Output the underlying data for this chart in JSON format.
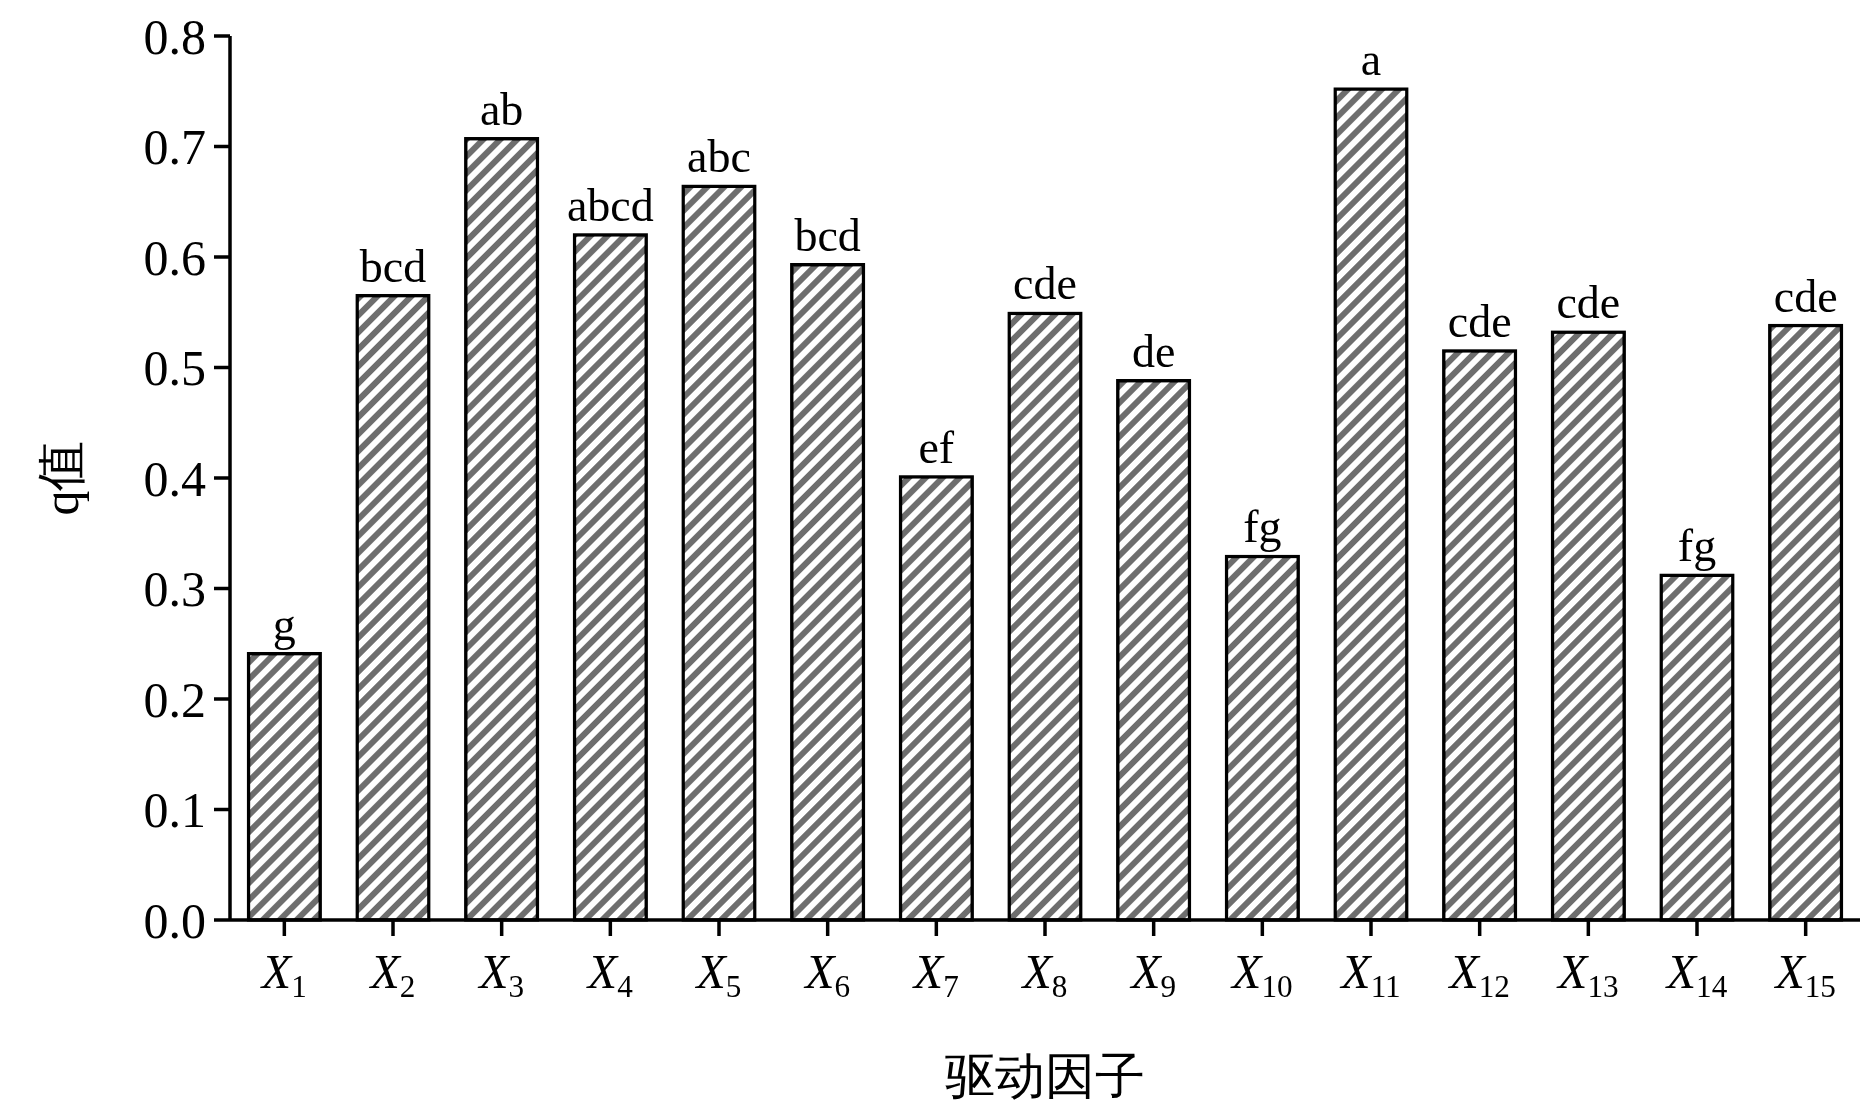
{
  "chart_data": {
    "type": "bar",
    "xlabel": "驱动因子",
    "ylabel": "q值",
    "categories": [
      "X$_{1}$",
      "X$_{2}$",
      "X$_{3}$",
      "X$_{4}$",
      "X$_{5}$",
      "X$_{6}$",
      "X$_{7}$",
      "X$_{8}$",
      "X$_{9}$",
      "X$_{10}$",
      "X$_{11}$",
      "X$_{12}$",
      "X$_{13}$",
      "X$_{14}$",
      "X$_{15}$"
    ],
    "values": [
      0.241,
      0.565,
      0.707,
      0.62,
      0.664,
      0.593,
      0.401,
      0.549,
      0.488,
      0.329,
      0.752,
      0.515,
      0.532,
      0.312,
      0.538
    ],
    "value_labels": [
      "g",
      "bcd",
      "ab",
      "abcd",
      "abc",
      "bcd",
      "ef",
      "cde",
      "de",
      "fg",
      "a",
      "cde",
      "cde",
      "fg",
      "cde"
    ],
    "color": "#6e6e6e",
    "ylim": [
      0,
      0.8
    ],
    "yticks": [
      {
        "value": 0,
        "label": "0.0"
      },
      0.1,
      0.2,
      0.3,
      0.4,
      0.5,
      0.6,
      0.7,
      0.8
    ]
  }
}
